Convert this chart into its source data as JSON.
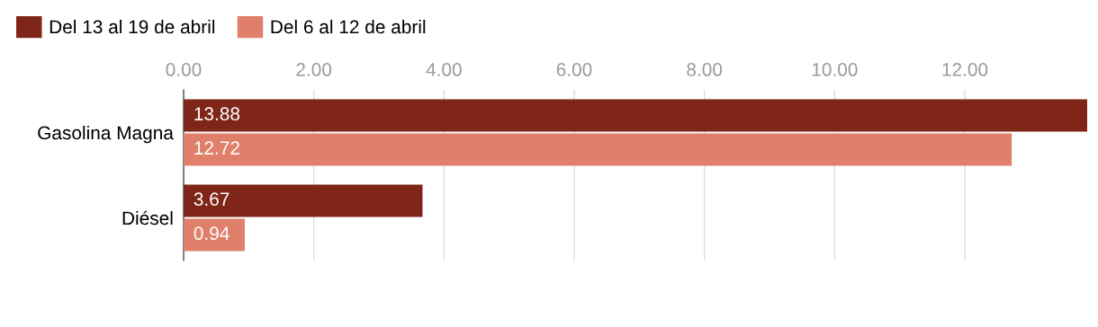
{
  "chart_data": {
    "type": "bar",
    "orientation": "horizontal",
    "categories": [
      "Gasolina Magna",
      "Diésel"
    ],
    "series": [
      {
        "name": "Del 13 al 19 de abril",
        "color": "#7f2619",
        "values": [
          13.88,
          3.67
        ]
      },
      {
        "name": "Del 6 al 12 de abril",
        "color": "#e07f6a",
        "values": [
          12.72,
          0.94
        ]
      }
    ],
    "xlim": [
      0,
      13.88
    ],
    "xticks": [
      {
        "value": 0,
        "label": "0.00"
      },
      {
        "value": 2,
        "label": "2.00"
      },
      {
        "value": 4,
        "label": "4.00"
      },
      {
        "value": 6,
        "label": "6.00"
      },
      {
        "value": 8,
        "label": "8.00"
      },
      {
        "value": 10,
        "label": "10.00"
      },
      {
        "value": 12,
        "label": "12.00"
      }
    ],
    "grid": "x",
    "legend": "top left",
    "data_labels": true
  }
}
